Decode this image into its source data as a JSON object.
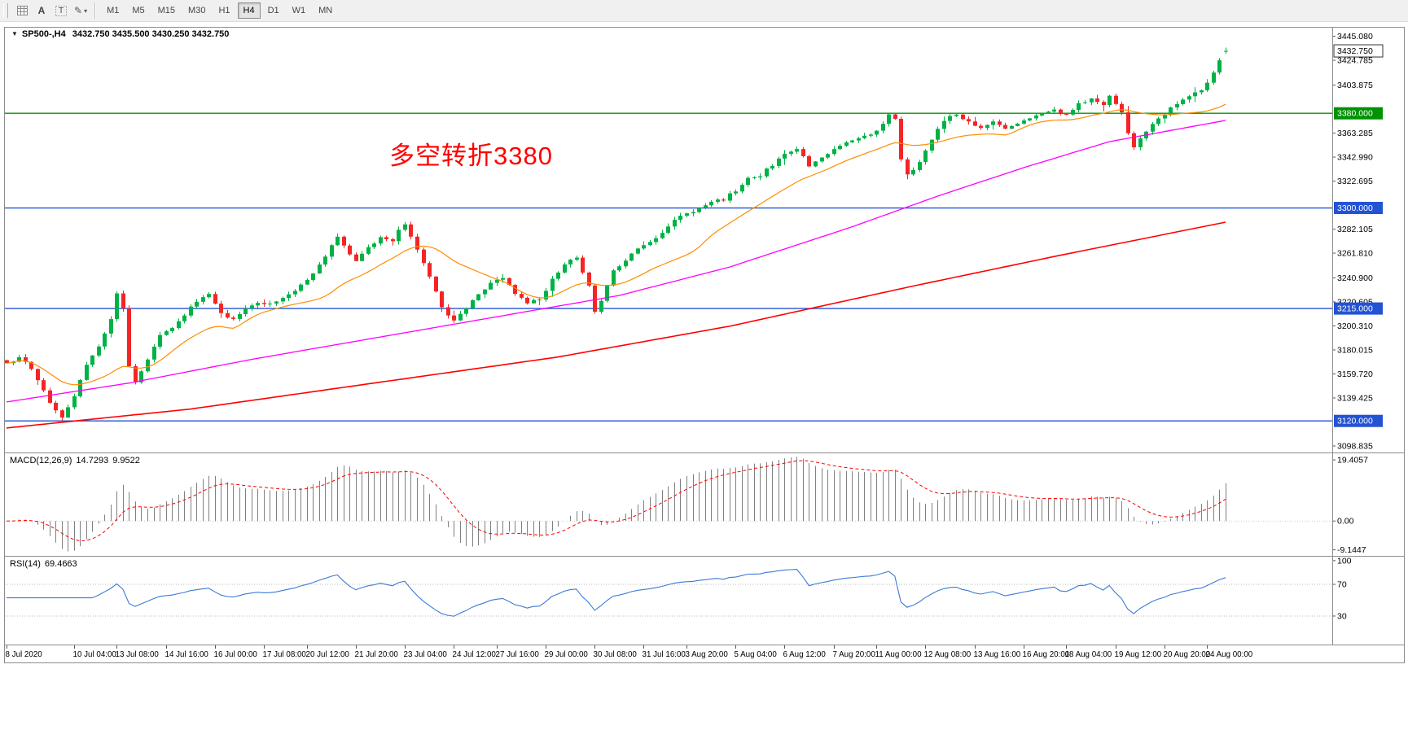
{
  "icons": {
    "caret_down": "▾",
    "expand_triangle": "▼",
    "pencil": "✎",
    "letter_a": "A",
    "letter_t": "T"
  },
  "toolbar": {
    "timeframes": [
      "M1",
      "M5",
      "M15",
      "M30",
      "H1",
      "H4",
      "D1",
      "W1",
      "MN"
    ],
    "active_timeframe": "H4"
  },
  "chart": {
    "symbol_tf": "SP500-,H4",
    "ohlc": "3432.750 3435.500 3430.250 3432.750",
    "annotation": "多空转折3380"
  },
  "price_axis": {
    "ticks": [
      {
        "label": "3445.080",
        "value": 3445.08
      },
      {
        "label": "3424.785",
        "value": 3424.785
      },
      {
        "label": "3403.875",
        "value": 3403.875
      },
      {
        "label": "3363.285",
        "value": 3363.285
      },
      {
        "label": "3342.990",
        "value": 3342.99
      },
      {
        "label": "3322.695",
        "value": 3322.695
      },
      {
        "label": "3282.105",
        "value": 3282.105
      },
      {
        "label": "3261.810",
        "value": 3261.81
      },
      {
        "label": "3240.900",
        "value": 3240.9
      },
      {
        "label": "3220.605",
        "value": 3220.605
      },
      {
        "label": "3200.310",
        "value": 3200.31
      },
      {
        "label": "3180.015",
        "value": 3180.015
      },
      {
        "label": "3159.720",
        "value": 3159.72
      },
      {
        "label": "3139.425",
        "value": 3139.425
      },
      {
        "label": "3098.835",
        "value": 3098.835
      }
    ],
    "levels": [
      {
        "label": "3432.750",
        "value": 3432.75,
        "type": "current"
      },
      {
        "label": "3380.000",
        "value": 3380,
        "type": "level",
        "color": "green"
      },
      {
        "label": "3300.000",
        "value": 3300,
        "type": "level",
        "color": "blue"
      },
      {
        "label": "3215.000",
        "value": 3215,
        "type": "level",
        "color": "blue"
      },
      {
        "label": "3120.000",
        "value": 3120,
        "type": "level",
        "color": "blue"
      }
    ]
  },
  "time_axis": {
    "labels": [
      "8 Jul 2020",
      "10 Jul 04:00",
      "13 Jul 08:00",
      "14 Jul 16:00",
      "16 Jul 00:00",
      "17 Jul 08:00",
      "20 Jul 12:00",
      "21 Jul 20:00",
      "23 Jul 04:00",
      "24 Jul 12:00",
      "27 Jul 16:00",
      "29 Jul 00:00",
      "30 Jul 08:00",
      "31 Jul 16:00",
      "3 Aug 20:00",
      "5 Aug 04:00",
      "6 Aug 12:00",
      "7 Aug 20:00",
      "11 Aug 00:00",
      "12 Aug 08:00",
      "13 Aug 16:00",
      "16 Aug 20:00",
      "18 Aug 04:00",
      "19 Aug 12:00",
      "20 Aug 20:00",
      "24 Aug 00:00"
    ],
    "bars": [
      0,
      11,
      18,
      26,
      34,
      42,
      49,
      57,
      65,
      73,
      80,
      88,
      96,
      104,
      111,
      119,
      127,
      135,
      142,
      150,
      158,
      166,
      173,
      181,
      189,
      196
    ]
  },
  "indicators": {
    "macd": {
      "label": "MACD(12,26,9)",
      "value_main": "14.7293",
      "value_signal": "9.9522",
      "axis_ticks": [
        {
          "label": "19.4057",
          "value": 19.4057
        },
        {
          "label": "0.00",
          "value": 0
        },
        {
          "label": "-9.1447",
          "value": -9.1447
        }
      ]
    },
    "rsi": {
      "label": "RSI(14)",
      "value": "69.4663",
      "axis_ticks": [
        {
          "label": "100",
          "value": 100
        },
        {
          "label": "70",
          "value": 70
        },
        {
          "label": "30",
          "value": 30
        }
      ]
    }
  },
  "colors": {
    "bull": "#00b246",
    "bear": "#f42525",
    "ma_fast": "#ff8c00",
    "ma_mid": "#ff00ff",
    "ma_slow": "#ff0000",
    "hline_green": "#009200",
    "hline_blue": "#2353d4",
    "current_badge_bg": "#ffffff",
    "current_badge_text": "#000000",
    "macd_hist": "#808080",
    "macd_signal": "#ff0000",
    "rsi_line": "#3a7bd5",
    "rsi_level": "#b8b8b8",
    "annotation": "#ff0000",
    "axis_text": "#000000",
    "frame": "#8c8c8c"
  },
  "chart_data": {
    "type": "candlestick",
    "symbol": "SP500-",
    "timeframe": "H4",
    "title": "SP500-,H4 3432.750 3435.500 3430.250 3432.750",
    "bars_count": 200,
    "price_range": [
      3094,
      3451
    ],
    "last_candle": {
      "o": 3432.75,
      "h": 3435.5,
      "l": 3430.25,
      "c": 3432.75
    },
    "hlines": [
      {
        "value": 3380,
        "color": "green"
      },
      {
        "value": 3300,
        "color": "blue"
      },
      {
        "value": 3215,
        "color": "blue"
      },
      {
        "value": 3120,
        "color": "blue"
      }
    ],
    "close_waypoints": [
      [
        0,
        3169
      ],
      [
        2,
        3173
      ],
      [
        4,
        3165
      ],
      [
        6,
        3145
      ],
      [
        8,
        3128
      ],
      [
        9,
        3122
      ],
      [
        11,
        3142
      ],
      [
        13,
        3168
      ],
      [
        15,
        3184
      ],
      [
        17,
        3205
      ],
      [
        18,
        3228
      ],
      [
        19,
        3215
      ],
      [
        20,
        3165
      ],
      [
        21,
        3152
      ],
      [
        23,
        3172
      ],
      [
        25,
        3192
      ],
      [
        27,
        3198
      ],
      [
        29,
        3210
      ],
      [
        31,
        3222
      ],
      [
        33,
        3227
      ],
      [
        35,
        3212
      ],
      [
        37,
        3205
      ],
      [
        39,
        3214
      ],
      [
        41,
        3220
      ],
      [
        43,
        3218
      ],
      [
        45,
        3224
      ],
      [
        47,
        3230
      ],
      [
        49,
        3238
      ],
      [
        51,
        3252
      ],
      [
        53,
        3268
      ],
      [
        54,
        3276
      ],
      [
        56,
        3260
      ],
      [
        57,
        3256
      ],
      [
        59,
        3266
      ],
      [
        61,
        3274
      ],
      [
        63,
        3272
      ],
      [
        64,
        3282
      ],
      [
        65,
        3286
      ],
      [
        67,
        3266
      ],
      [
        69,
        3242
      ],
      [
        71,
        3215
      ],
      [
        73,
        3205
      ],
      [
        75,
        3216
      ],
      [
        77,
        3226
      ],
      [
        79,
        3238
      ],
      [
        81,
        3240
      ],
      [
        83,
        3228
      ],
      [
        85,
        3220
      ],
      [
        87,
        3222
      ],
      [
        89,
        3240
      ],
      [
        91,
        3252
      ],
      [
        93,
        3258
      ],
      [
        95,
        3235
      ],
      [
        96,
        3212
      ],
      [
        97,
        3222
      ],
      [
        99,
        3246
      ],
      [
        101,
        3256
      ],
      [
        103,
        3266
      ],
      [
        105,
        3271
      ],
      [
        107,
        3280
      ],
      [
        109,
        3290
      ],
      [
        111,
        3295
      ],
      [
        113,
        3300
      ],
      [
        115,
        3305
      ],
      [
        117,
        3307
      ],
      [
        119,
        3315
      ],
      [
        121,
        3325
      ],
      [
        123,
        3328
      ],
      [
        125,
        3336
      ],
      [
        127,
        3345
      ],
      [
        129,
        3349
      ],
      [
        130,
        3344
      ],
      [
        131,
        3334
      ],
      [
        133,
        3342
      ],
      [
        135,
        3351
      ],
      [
        137,
        3355
      ],
      [
        139,
        3360
      ],
      [
        141,
        3361
      ],
      [
        143,
        3372
      ],
      [
        144,
        3380
      ],
      [
        145,
        3375
      ],
      [
        146,
        3340
      ],
      [
        147,
        3328
      ],
      [
        149,
        3338
      ],
      [
        151,
        3358
      ],
      [
        153,
        3374
      ],
      [
        155,
        3380
      ],
      [
        157,
        3372
      ],
      [
        159,
        3368
      ],
      [
        161,
        3374
      ],
      [
        163,
        3366
      ],
      [
        165,
        3372
      ],
      [
        167,
        3376
      ],
      [
        169,
        3380
      ],
      [
        171,
        3382
      ],
      [
        173,
        3378
      ],
      [
        175,
        3388
      ],
      [
        177,
        3393
      ],
      [
        179,
        3388
      ],
      [
        180,
        3396
      ],
      [
        182,
        3380
      ],
      [
        183,
        3362
      ],
      [
        184,
        3352
      ],
      [
        185,
        3360
      ],
      [
        187,
        3370
      ],
      [
        189,
        3380
      ],
      [
        191,
        3388
      ],
      [
        193,
        3394
      ],
      [
        195,
        3400
      ],
      [
        196,
        3406
      ],
      [
        197,
        3414
      ],
      [
        198,
        3424
      ],
      [
        199,
        3433
      ]
    ],
    "ma_fast_period": 18,
    "ma_mid_waypoints": [
      [
        0,
        3136
      ],
      [
        20,
        3152
      ],
      [
        40,
        3172
      ],
      [
        60,
        3190
      ],
      [
        80,
        3208
      ],
      [
        100,
        3226
      ],
      [
        118,
        3250
      ],
      [
        138,
        3284
      ],
      [
        152,
        3310
      ],
      [
        166,
        3334
      ],
      [
        180,
        3356
      ],
      [
        199,
        3374
      ]
    ],
    "ma_slow_waypoints": [
      [
        0,
        3114
      ],
      [
        30,
        3130
      ],
      [
        60,
        3152
      ],
      [
        90,
        3174
      ],
      [
        118,
        3200
      ],
      [
        148,
        3234
      ],
      [
        172,
        3260
      ],
      [
        199,
        3288
      ]
    ],
    "indicators": {
      "macd": {
        "params": [
          12,
          26,
          9
        ],
        "range": [
          -10.8,
          21.5
        ]
      },
      "rsi": {
        "params": [
          14
        ],
        "range": [
          -5,
          105
        ],
        "levels": [
          70,
          30
        ]
      }
    }
  }
}
